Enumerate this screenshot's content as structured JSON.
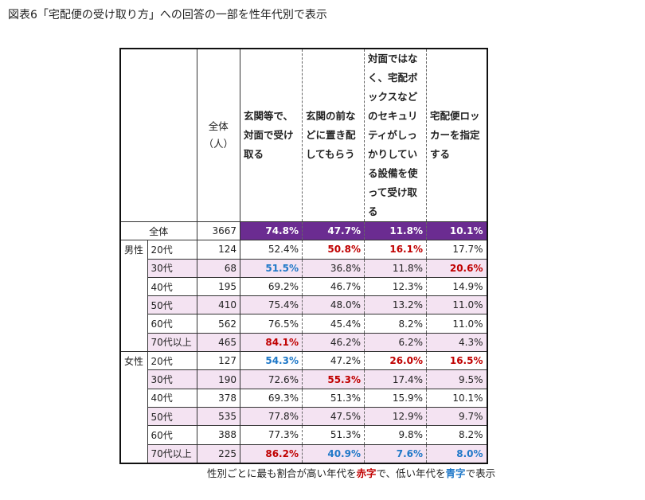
{
  "title": "図表6「宅配便の受け取り方」への回答の一部を性年代別で表示",
  "table": {
    "columns": [
      "全体（人）",
      "玄関等で、対面で受け取る",
      "玄関の前などに置き配してもらう",
      "対面ではなく、宅配ボックスなどのセキュリティがしっかりしている設備を使って受け取る",
      "宅配便ロッカーを指定する"
    ],
    "total": {
      "label": "全体",
      "n": 3667,
      "values": [
        "74.8%",
        "47.7%",
        "11.8%",
        "10.1%"
      ]
    },
    "groups": [
      {
        "name": "男性",
        "rows": [
          {
            "label": "20代",
            "n": 124,
            "values": [
              "52.4%",
              "50.8%",
              "16.1%",
              "17.7%"
            ],
            "red": [
              1,
              2
            ],
            "blue": []
          },
          {
            "label": "30代",
            "n": 68,
            "values": [
              "51.5%",
              "36.8%",
              "11.8%",
              "20.6%"
            ],
            "red": [
              3
            ],
            "blue": [
              0
            ]
          },
          {
            "label": "40代",
            "n": 195,
            "values": [
              "69.2%",
              "46.7%",
              "12.3%",
              "14.9%"
            ],
            "red": [],
            "blue": []
          },
          {
            "label": "50代",
            "n": 410,
            "values": [
              "75.4%",
              "48.0%",
              "13.2%",
              "11.0%"
            ],
            "red": [],
            "blue": []
          },
          {
            "label": "60代",
            "n": 562,
            "values": [
              "76.5%",
              "45.4%",
              "8.2%",
              "11.0%"
            ],
            "red": [],
            "blue": []
          },
          {
            "label": "70代以上",
            "n": 465,
            "values": [
              "84.1%",
              "46.2%",
              "6.2%",
              "4.3%"
            ],
            "red": [
              0
            ],
            "blue": []
          }
        ]
      },
      {
        "name": "女性",
        "rows": [
          {
            "label": "20代",
            "n": 127,
            "values": [
              "54.3%",
              "47.2%",
              "26.0%",
              "16.5%"
            ],
            "red": [
              2,
              3
            ],
            "blue": [
              0
            ]
          },
          {
            "label": "30代",
            "n": 190,
            "values": [
              "72.6%",
              "55.3%",
              "17.4%",
              "9.5%"
            ],
            "red": [
              1
            ],
            "blue": []
          },
          {
            "label": "40代",
            "n": 378,
            "values": [
              "69.3%",
              "51.3%",
              "15.9%",
              "10.1%"
            ],
            "red": [],
            "blue": []
          },
          {
            "label": "50代",
            "n": 535,
            "values": [
              "77.8%",
              "47.5%",
              "12.9%",
              "9.7%"
            ],
            "red": [],
            "blue": []
          },
          {
            "label": "60代",
            "n": 388,
            "values": [
              "77.3%",
              "51.3%",
              "9.8%",
              "8.2%"
            ],
            "red": [],
            "blue": []
          },
          {
            "label": "70代以上",
            "n": 225,
            "values": [
              "86.2%",
              "40.9%",
              "7.6%",
              "8.0%"
            ],
            "red": [
              0
            ],
            "blue": [
              1,
              2,
              3
            ]
          }
        ]
      }
    ]
  },
  "note": [
    "性別ごとに最も割合が高い年代を",
    "赤字",
    "で、低い年代を",
    "青字",
    "で表示"
  ]
}
